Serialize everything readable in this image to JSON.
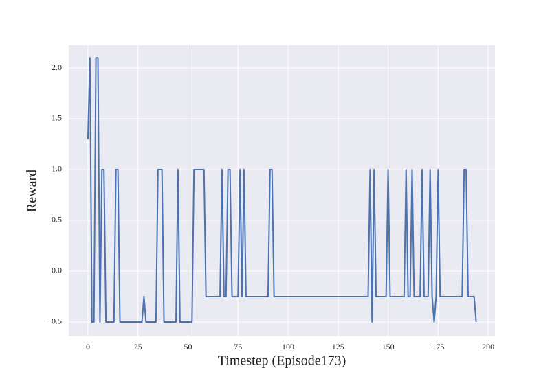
{
  "chart_data": {
    "type": "line",
    "xlabel": "Timestep (Episode173)",
    "ylabel": "Reward",
    "x": [
      0,
      1,
      2,
      3,
      4,
      5,
      6,
      7,
      8,
      9,
      10,
      11,
      12,
      13,
      14,
      15,
      16,
      17,
      18,
      19,
      20,
      21,
      22,
      23,
      24,
      25,
      26,
      27,
      28,
      29,
      30,
      31,
      32,
      33,
      34,
      35,
      36,
      37,
      38,
      39,
      40,
      41,
      42,
      43,
      44,
      45,
      46,
      47,
      48,
      49,
      50,
      51,
      52,
      53,
      54,
      55,
      56,
      57,
      58,
      59,
      60,
      61,
      62,
      63,
      64,
      65,
      66,
      67,
      68,
      69,
      70,
      71,
      72,
      73,
      74,
      75,
      76,
      77,
      78,
      79,
      80,
      81,
      82,
      83,
      84,
      85,
      86,
      87,
      88,
      89,
      90,
      91,
      92,
      93,
      94,
      95,
      96,
      97,
      98,
      99,
      100,
      101,
      102,
      103,
      104,
      105,
      106,
      107,
      108,
      109,
      110,
      111,
      112,
      113,
      114,
      115,
      116,
      117,
      118,
      119,
      120,
      121,
      122,
      123,
      124,
      125,
      126,
      127,
      128,
      129,
      130,
      131,
      132,
      133,
      134,
      135,
      136,
      137,
      138,
      139,
      140,
      141,
      142,
      143,
      144,
      145,
      146,
      147,
      148,
      149,
      150,
      151,
      152,
      153,
      154,
      155,
      156,
      157,
      158,
      159,
      160,
      161,
      162,
      163,
      164,
      165,
      166,
      167,
      168,
      169,
      170,
      171,
      172,
      173,
      174,
      175,
      176,
      177,
      178,
      179,
      180,
      181,
      182,
      183,
      184,
      185,
      186,
      187,
      188,
      189,
      190,
      191,
      192,
      193,
      194
    ],
    "series": [
      {
        "color": "#4c72b0",
        "values": [
          1.3,
          2.1,
          -0.5,
          -0.5,
          2.1,
          2.1,
          -0.5,
          1,
          1,
          -0.5,
          -0.5,
          -0.5,
          -0.5,
          -0.5,
          1,
          1,
          -0.5,
          -0.5,
          -0.5,
          -0.5,
          -0.5,
          -0.5,
          -0.5,
          -0.5,
          -0.5,
          -0.5,
          -0.5,
          -0.5,
          -0.25,
          -0.5,
          -0.5,
          -0.5,
          -0.5,
          -0.5,
          -0.5,
          1,
          1,
          1,
          -0.5,
          -0.5,
          -0.5,
          -0.5,
          -0.5,
          -0.5,
          -0.5,
          1,
          -0.5,
          -0.5,
          -0.5,
          -0.5,
          -0.5,
          -0.5,
          -0.5,
          1,
          1,
          1,
          1,
          1,
          1,
          -0.25,
          -0.25,
          -0.25,
          -0.25,
          -0.25,
          -0.25,
          -0.25,
          -0.25,
          1,
          -0.25,
          -0.25,
          1,
          1,
          -0.25,
          -0.25,
          -0.25,
          -0.25,
          1,
          -0.25,
          1,
          -0.25,
          -0.25,
          -0.25,
          -0.25,
          -0.25,
          -0.25,
          -0.25,
          -0.25,
          -0.25,
          -0.25,
          -0.25,
          -0.25,
          1,
          1,
          -0.25,
          -0.25,
          -0.25,
          -0.25,
          -0.25,
          -0.25,
          -0.25,
          -0.25,
          -0.25,
          -0.25,
          -0.25,
          -0.25,
          -0.25,
          -0.25,
          -0.25,
          -0.25,
          -0.25,
          -0.25,
          -0.25,
          -0.25,
          -0.25,
          -0.25,
          -0.25,
          -0.25,
          -0.25,
          -0.25,
          -0.25,
          -0.25,
          -0.25,
          -0.25,
          -0.25,
          -0.25,
          -0.25,
          -0.25,
          -0.25,
          -0.25,
          -0.25,
          -0.25,
          -0.25,
          -0.25,
          -0.25,
          -0.25,
          -0.25,
          -0.25,
          -0.25,
          -0.25,
          -0.25,
          -0.25,
          1,
          -0.5,
          1,
          -0.25,
          -0.25,
          -0.25,
          -0.25,
          -0.25,
          -0.25,
          1,
          -0.25,
          -0.25,
          -0.25,
          -0.25,
          -0.25,
          -0.25,
          -0.25,
          -0.25,
          1,
          -0.25,
          -0.25,
          1,
          -0.25,
          -0.25,
          -0.25,
          -0.25,
          1,
          -0.25,
          -0.25,
          -0.25,
          1,
          -0.25,
          -0.5,
          -0.25,
          1,
          -0.25,
          -0.25,
          -0.25,
          -0.25,
          -0.25,
          -0.25,
          -0.25,
          -0.25,
          -0.25,
          -0.25,
          -0.25,
          -0.25,
          1,
          1,
          -0.25,
          -0.25,
          -0.25,
          -0.25,
          -0.5
        ]
      }
    ],
    "xlim": [
      -9.6,
      203.4
    ],
    "ylim": [
      -0.642,
      2.223
    ],
    "xticks": [
      0,
      25,
      50,
      75,
      100,
      125,
      150,
      175,
      200
    ],
    "yticks": [
      {
        "value": -0.5,
        "label": "−0.5"
      },
      {
        "value": 0,
        "label": "0.0"
      },
      {
        "value": 0.5,
        "label": "0.5"
      },
      {
        "value": 1,
        "label": "1.0"
      },
      {
        "value": 1.5,
        "label": "1.5"
      },
      {
        "value": 2,
        "label": "2.0"
      }
    ],
    "grid": true
  }
}
